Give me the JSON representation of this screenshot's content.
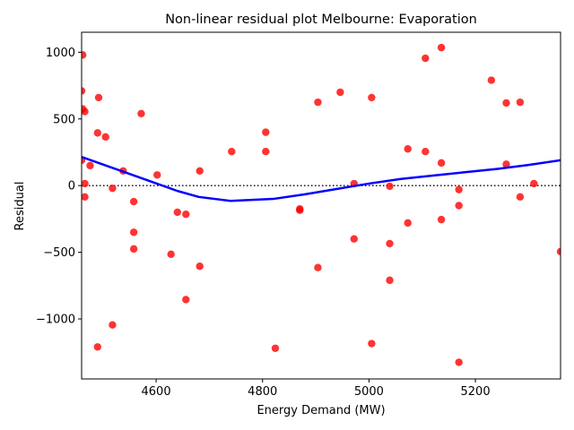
{
  "chart_data": {
    "type": "scatter",
    "title": "Non-linear residual plot Melbourne: Evaporation",
    "xlabel": "Energy Demand (MW)",
    "ylabel": "Residual",
    "xlim": [
      4460,
      5360
    ],
    "ylim": [
      -1450,
      1150
    ],
    "xticks": [
      4600,
      4800,
      5000,
      5200
    ],
    "yticks": [
      -1000,
      -500,
      0,
      500,
      1000
    ],
    "xtick_labels": [
      "4600",
      "4800",
      "5000",
      "5200"
    ],
    "ytick_labels": [
      "−1000",
      "−500",
      "0",
      "500",
      "1000"
    ],
    "grid": false,
    "reference_line": {
      "y": 0,
      "style": "dotted",
      "color": "#000000"
    },
    "colors": {
      "points": "#ff0000",
      "fit": "#0000ff"
    },
    "points": [
      {
        "x": 4462,
        "y": 980
      },
      {
        "x": 4460,
        "y": 710
      },
      {
        "x": 4462,
        "y": 575
      },
      {
        "x": 4466,
        "y": 555
      },
      {
        "x": 4492,
        "y": 660
      },
      {
        "x": 4460,
        "y": 190
      },
      {
        "x": 4466,
        "y": 15
      },
      {
        "x": 4466,
        "y": -85
      },
      {
        "x": 4476,
        "y": 150
      },
      {
        "x": 4490,
        "y": 395
      },
      {
        "x": 4505,
        "y": 365
      },
      {
        "x": 4518,
        "y": -20
      },
      {
        "x": 4538,
        "y": 110
      },
      {
        "x": 4558,
        "y": -120
      },
      {
        "x": 4558,
        "y": -350
      },
      {
        "x": 4558,
        "y": -475
      },
      {
        "x": 4572,
        "y": 540
      },
      {
        "x": 4602,
        "y": 80
      },
      {
        "x": 4518,
        "y": -1045
      },
      {
        "x": 4490,
        "y": -1210
      },
      {
        "x": 4628,
        "y": -515
      },
      {
        "x": 4640,
        "y": -200
      },
      {
        "x": 4656,
        "y": -215
      },
      {
        "x": 4656,
        "y": -855
      },
      {
        "x": 4682,
        "y": 110
      },
      {
        "x": 4682,
        "y": -605
      },
      {
        "x": 4742,
        "y": 255
      },
      {
        "x": 4806,
        "y": 400
      },
      {
        "x": 4806,
        "y": 255
      },
      {
        "x": 4824,
        "y": -1220
      },
      {
        "x": 4870,
        "y": -175
      },
      {
        "x": 4870,
        "y": -185
      },
      {
        "x": 4904,
        "y": 625
      },
      {
        "x": 4904,
        "y": -615
      },
      {
        "x": 4946,
        "y": 700
      },
      {
        "x": 4972,
        "y": 15
      },
      {
        "x": 4972,
        "y": -400
      },
      {
        "x": 5005,
        "y": 660
      },
      {
        "x": 5005,
        "y": -1185
      },
      {
        "x": 5039,
        "y": -5
      },
      {
        "x": 5039,
        "y": -435
      },
      {
        "x": 5039,
        "y": -710
      },
      {
        "x": 5073,
        "y": 275
      },
      {
        "x": 5073,
        "y": -280
      },
      {
        "x": 5106,
        "y": 955
      },
      {
        "x": 5106,
        "y": 255
      },
      {
        "x": 5136,
        "y": 1035
      },
      {
        "x": 5136,
        "y": 170
      },
      {
        "x": 5136,
        "y": -255
      },
      {
        "x": 5169,
        "y": -30
      },
      {
        "x": 5169,
        "y": -150
      },
      {
        "x": 5169,
        "y": -1325
      },
      {
        "x": 5230,
        "y": 790
      },
      {
        "x": 5258,
        "y": 620
      },
      {
        "x": 5258,
        "y": 160
      },
      {
        "x": 5284,
        "y": 625
      },
      {
        "x": 5284,
        "y": -85
      },
      {
        "x": 5310,
        "y": 15
      },
      {
        "x": 5360,
        "y": -495
      }
    ],
    "fit_line": {
      "x": [
        4460,
        4520,
        4580,
        4640,
        4680,
        4740,
        4820,
        4880,
        4940,
        5000,
        5060,
        5120,
        5180,
        5240,
        5300,
        5360
      ],
      "y": [
        215,
        130,
        45,
        -40,
        -85,
        -115,
        -100,
        -65,
        -25,
        15,
        50,
        75,
        100,
        125,
        155,
        190
      ]
    }
  }
}
